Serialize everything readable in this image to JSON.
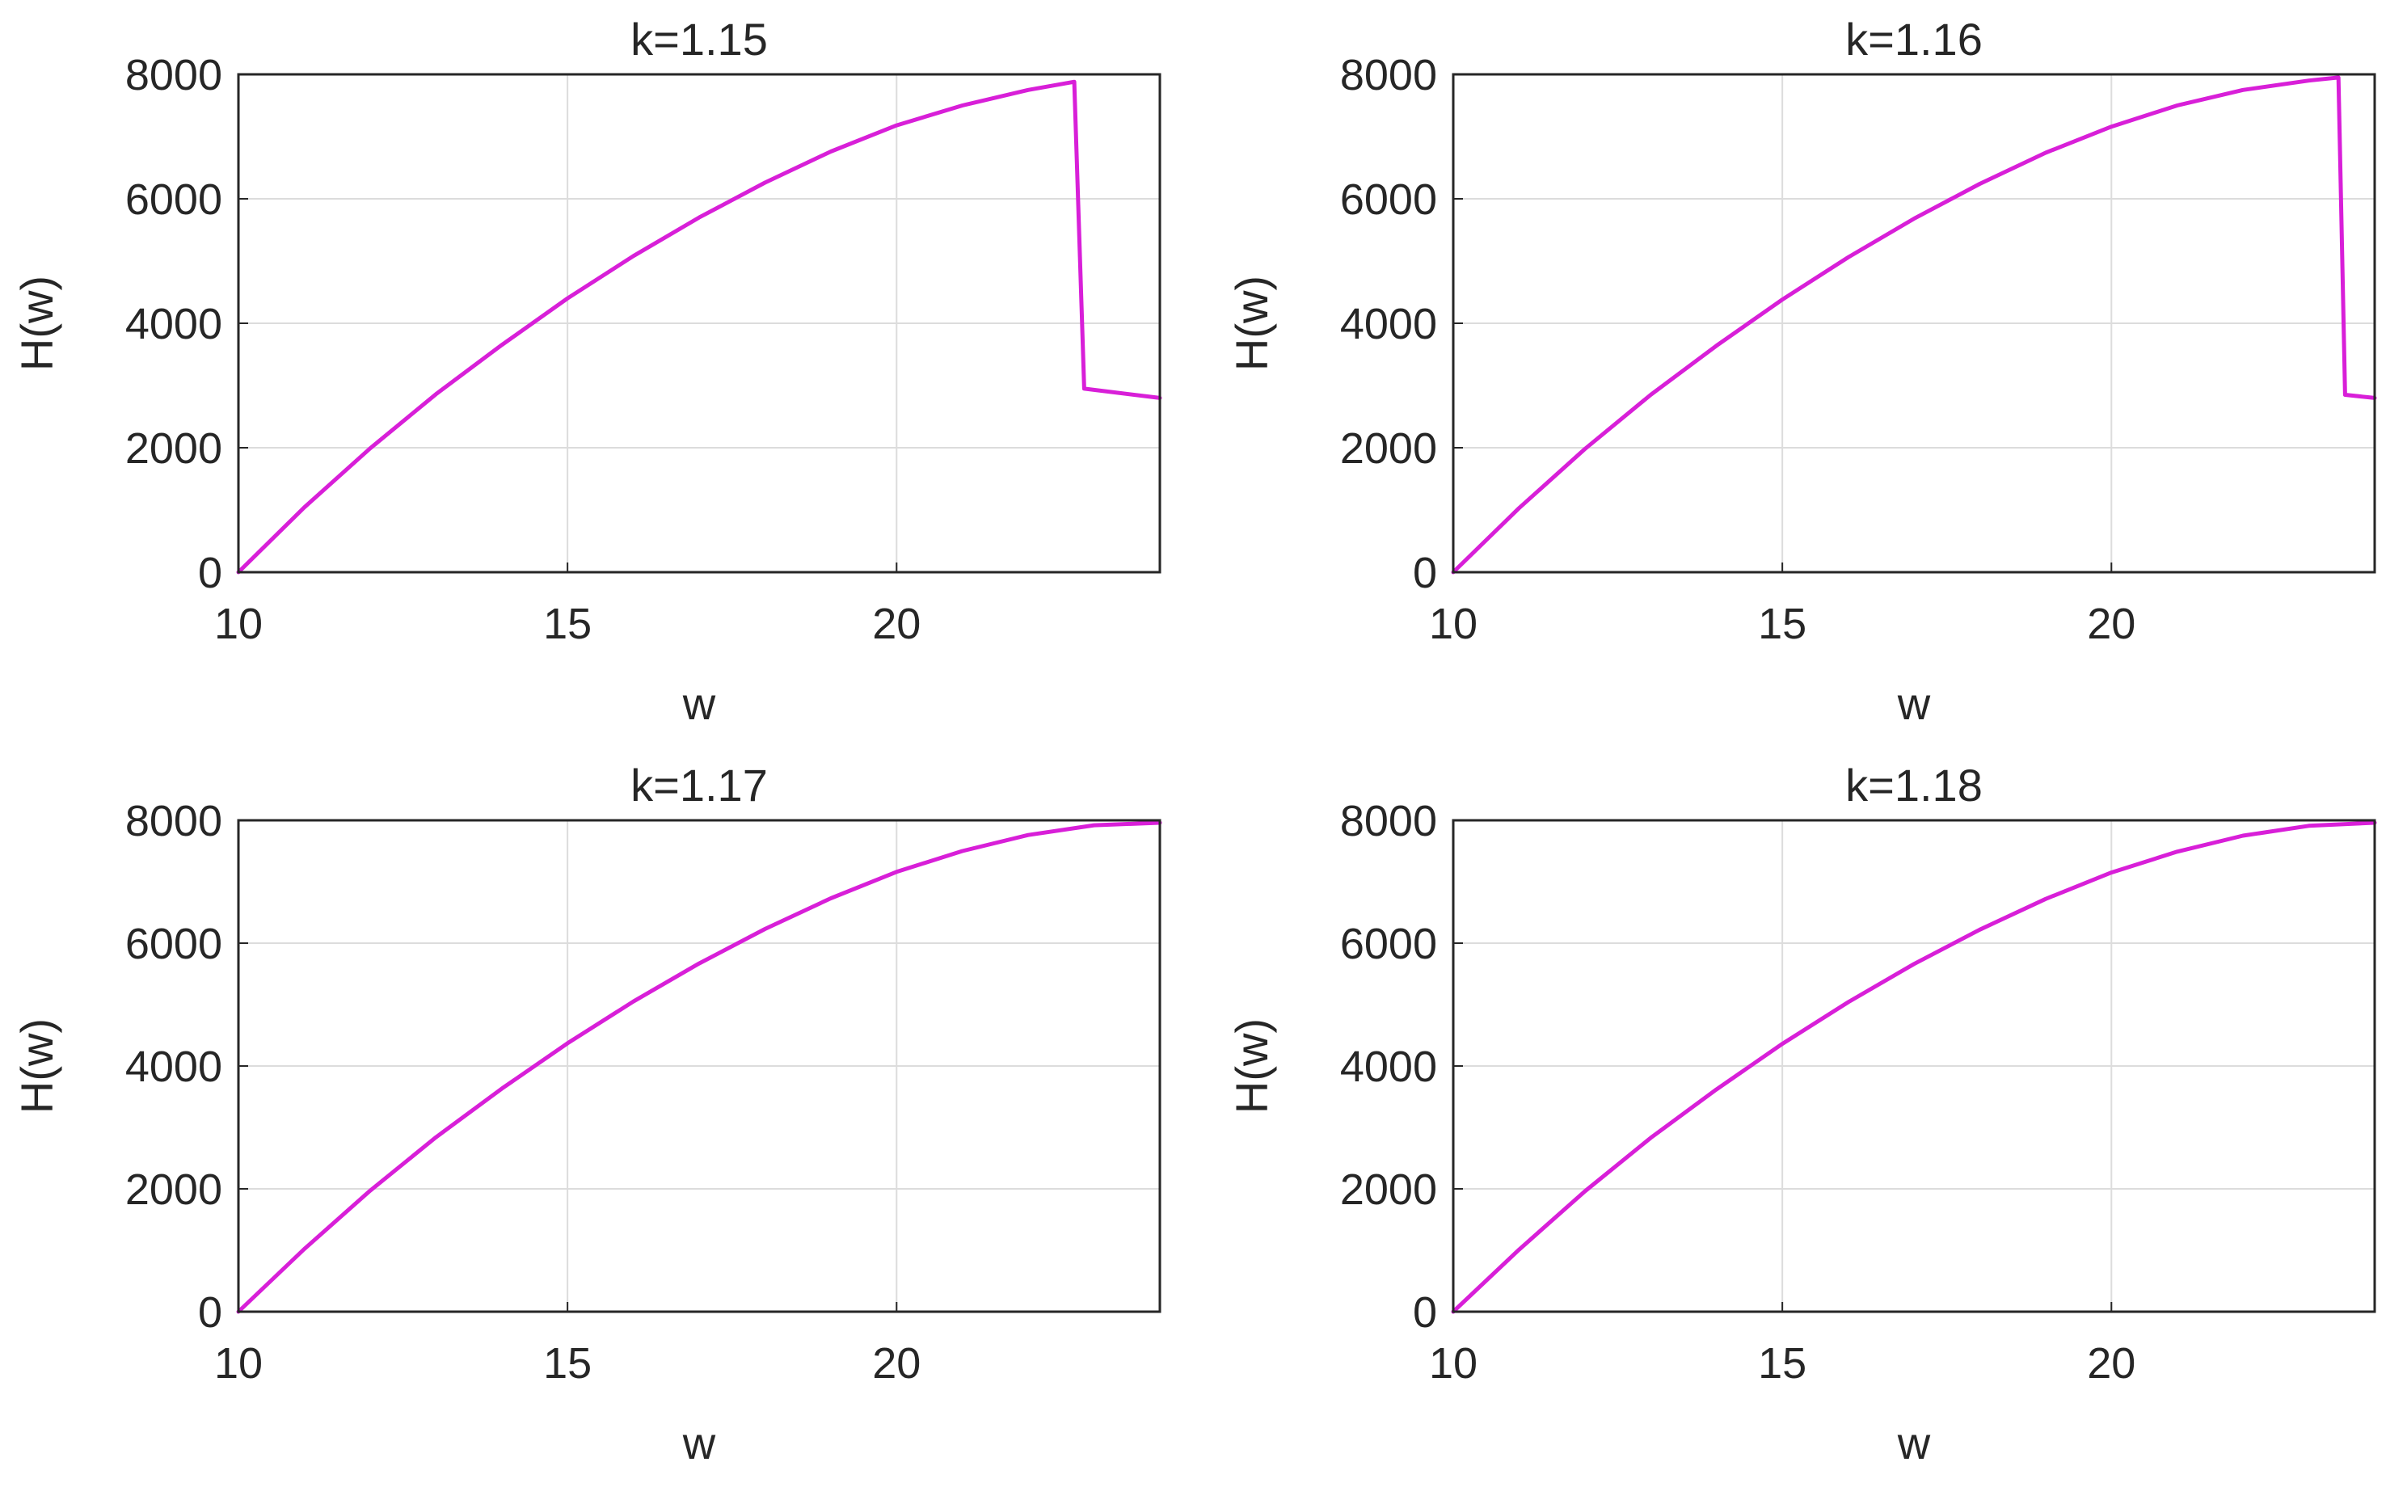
{
  "chart_data": [
    {
      "type": "line",
      "title": "k=1.15",
      "xlabel": "w",
      "ylabel": "H(w)",
      "xlim": [
        10,
        24
      ],
      "ylim": [
        0,
        8000
      ],
      "xticks": [
        10,
        15,
        20
      ],
      "yticks": [
        0,
        2000,
        4000,
        6000,
        8000
      ],
      "grid": true,
      "line_color": "#d81fd8",
      "series": [
        {
          "x": [
            10,
            11,
            12,
            13,
            14,
            15,
            16,
            17,
            18,
            19,
            20,
            21,
            22,
            22.7,
            22.85,
            24
          ],
          "values": [
            0,
            1040,
            1990,
            2860,
            3650,
            4400,
            5080,
            5700,
            6260,
            6760,
            7180,
            7500,
            7750,
            7880,
            2950,
            2800
          ]
        }
      ]
    },
    {
      "type": "line",
      "title": "k=1.16",
      "xlabel": "w",
      "ylabel": "H(w)",
      "xlim": [
        10,
        24
      ],
      "ylim": [
        0,
        8000
      ],
      "xticks": [
        10,
        15,
        20
      ],
      "yticks": [
        0,
        2000,
        4000,
        6000,
        8000
      ],
      "grid": true,
      "line_color": "#d81fd8",
      "series": [
        {
          "x": [
            10,
            11,
            12,
            13,
            14,
            15,
            16,
            17,
            18,
            19,
            20,
            21,
            22,
            23,
            23.45,
            23.55,
            24
          ],
          "values": [
            0,
            1030,
            1980,
            2850,
            3640,
            4380,
            5060,
            5680,
            6240,
            6740,
            7160,
            7500,
            7750,
            7900,
            7950,
            2850,
            2800
          ]
        }
      ]
    },
    {
      "type": "line",
      "title": "k=1.17",
      "xlabel": "w",
      "ylabel": "H(w)",
      "xlim": [
        10,
        24
      ],
      "ylim": [
        0,
        8000
      ],
      "xticks": [
        10,
        15,
        20
      ],
      "yticks": [
        0,
        2000,
        4000,
        6000,
        8000
      ],
      "grid": true,
      "line_color": "#d81fd8",
      "series": [
        {
          "x": [
            10,
            11,
            12,
            13,
            14,
            15,
            16,
            17,
            18,
            19,
            20,
            21,
            22,
            23,
            24
          ],
          "values": [
            0,
            1020,
            1970,
            2840,
            3630,
            4370,
            5050,
            5670,
            6230,
            6730,
            7160,
            7500,
            7760,
            7920,
            7960
          ]
        }
      ]
    },
    {
      "type": "line",
      "title": "k=1.18",
      "xlabel": "w",
      "ylabel": "H(w)",
      "xlim": [
        10,
        24
      ],
      "ylim": [
        0,
        8000
      ],
      "xticks": [
        10,
        15,
        20
      ],
      "yticks": [
        0,
        2000,
        4000,
        6000,
        8000
      ],
      "grid": true,
      "line_color": "#d81fd8",
      "series": [
        {
          "x": [
            10,
            11,
            12,
            13,
            14,
            15,
            16,
            17,
            18,
            19,
            20,
            21,
            22,
            23,
            24
          ],
          "values": [
            0,
            1010,
            1960,
            2830,
            3620,
            4360,
            5040,
            5660,
            6220,
            6720,
            7150,
            7490,
            7750,
            7910,
            7960
          ]
        }
      ]
    }
  ]
}
